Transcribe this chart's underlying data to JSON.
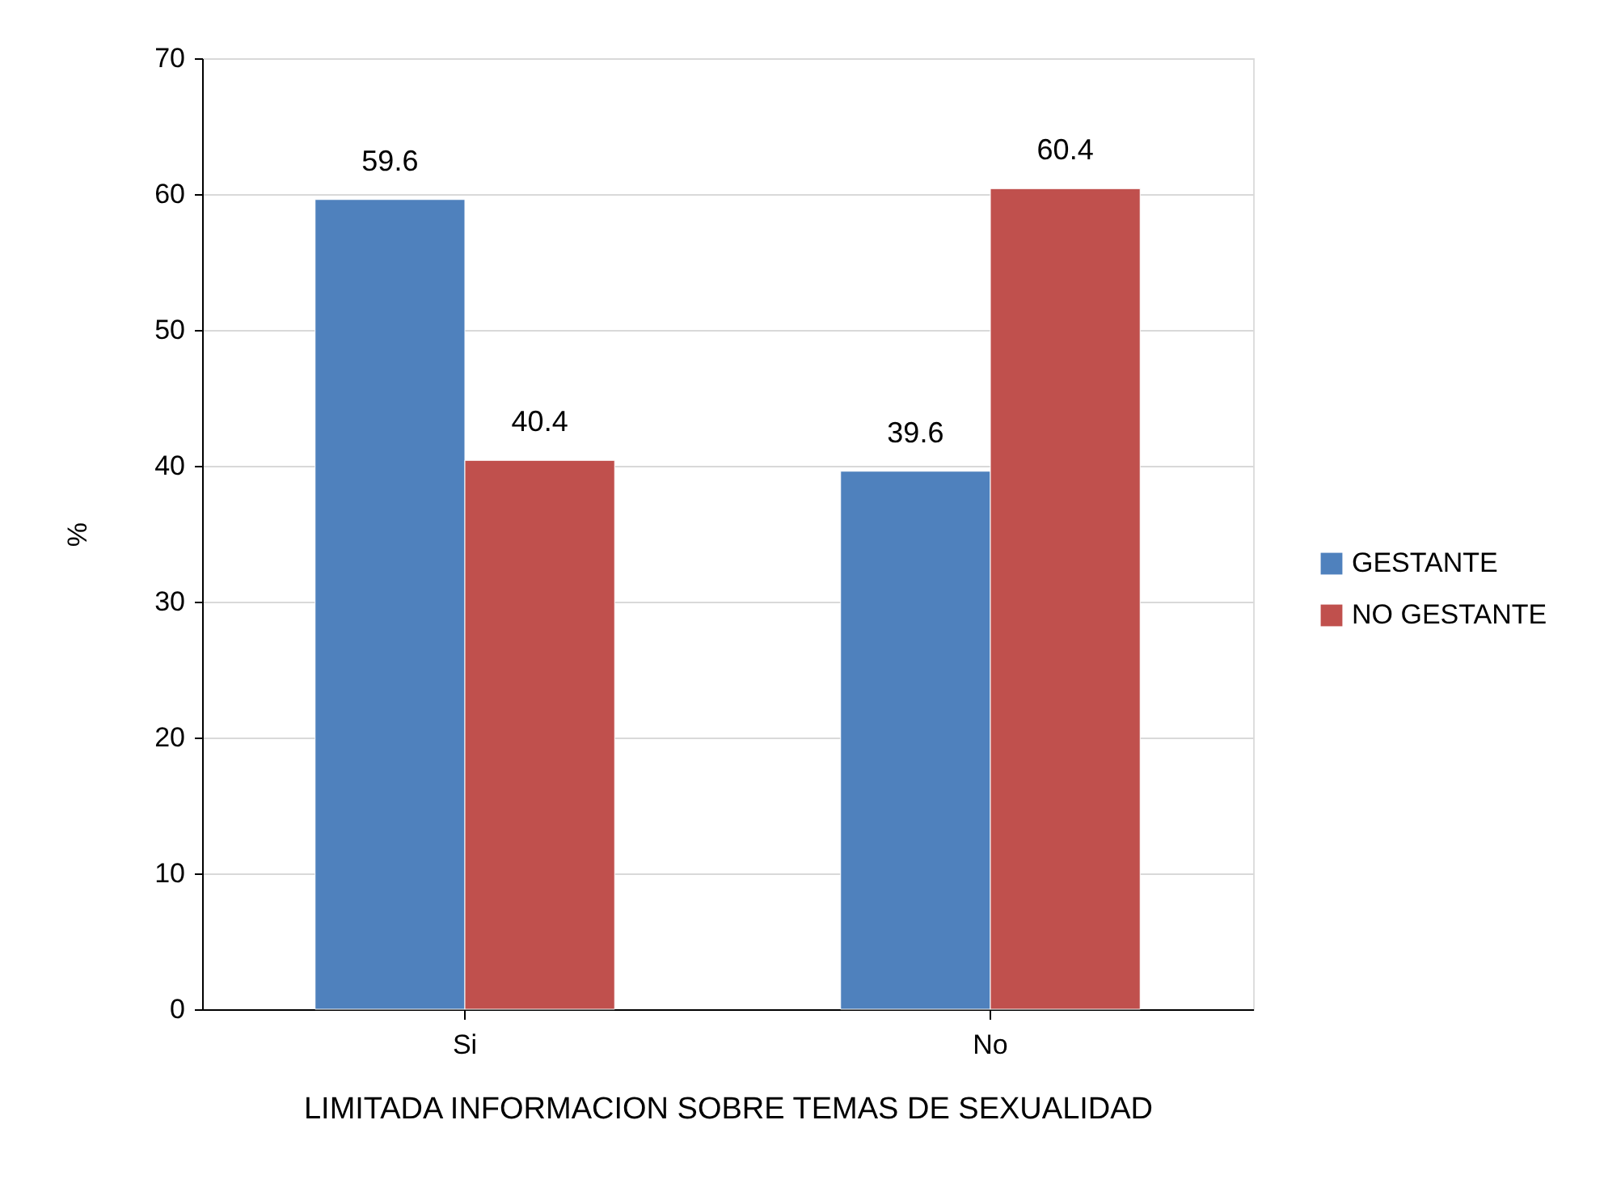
{
  "chart_data": {
    "type": "bar",
    "xlabel": "LIMITADA INFORMACION SOBRE TEMAS DE SEXUALIDAD",
    "ylabel": "%",
    "categories": [
      "Si",
      "No"
    ],
    "series": [
      {
        "name": "GESTANTE",
        "color": "#4f81bd",
        "values": [
          59.6,
          39.6
        ]
      },
      {
        "name": "NO GESTANTE",
        "color": "#c0504d",
        "values": [
          40.4,
          60.4
        ]
      }
    ],
    "ylim": [
      0,
      70
    ],
    "yticks": [
      0,
      10,
      20,
      30,
      40,
      50,
      60,
      70
    ],
    "grid": "y",
    "legend": "right",
    "data_labels": true
  }
}
